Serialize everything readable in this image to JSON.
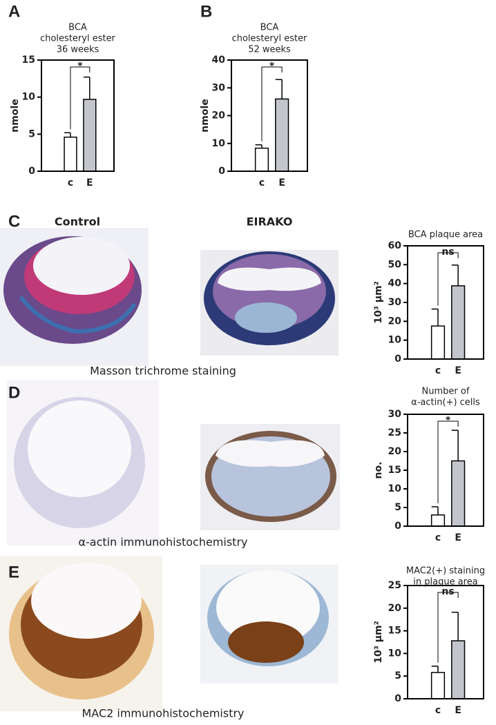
{
  "chart_data": [
    {
      "type": "bar",
      "panel": "A",
      "title": [
        "BCA",
        "cholesteryl ester",
        "36 weeks"
      ],
      "ylabel": "nmole",
      "categories": [
        "c",
        "E"
      ],
      "values": [
        4.6,
        9.7
      ],
      "errors": [
        0.6,
        3.0
      ],
      "colors": [
        "#ffffff",
        "#c3c5cc"
      ],
      "ylim": [
        0,
        15
      ],
      "yticks": [
        0,
        5,
        10,
        15
      ],
      "annotation": "*"
    },
    {
      "type": "bar",
      "panel": "B",
      "title": [
        "BCA",
        "cholesteryl ester",
        "52 weeks"
      ],
      "ylabel": "nmole",
      "categories": [
        "c",
        "E"
      ],
      "values": [
        8.3,
        26
      ],
      "errors": [
        1.2,
        7
      ],
      "colors": [
        "#ffffff",
        "#c3c5cc"
      ],
      "ylim": [
        0,
        40
      ],
      "yticks": [
        0,
        10,
        20,
        30,
        40
      ],
      "annotation": "*"
    },
    {
      "type": "bar",
      "panel": "C",
      "title": [
        "BCA plaque area"
      ],
      "ylabel": "10³ µm²",
      "categories": [
        "c",
        "E"
      ],
      "values": [
        17.5,
        38.8
      ],
      "errors": [
        9,
        11
      ],
      "colors": [
        "#ffffff",
        "#c3c5cc"
      ],
      "ylim": [
        0,
        60
      ],
      "yticks": [
        0,
        10,
        20,
        30,
        40,
        50,
        60
      ],
      "annotation": "ns"
    },
    {
      "type": "bar",
      "panel": "D",
      "title": [
        "Number of",
        "α-actin(+) cells"
      ],
      "ylabel": "no.",
      "categories": [
        "c",
        "E"
      ],
      "values": [
        3,
        17.5
      ],
      "errors": [
        2.2,
        8.2
      ],
      "colors": [
        "#ffffff",
        "#c3c5cc"
      ],
      "ylim": [
        0,
        30
      ],
      "yticks": [
        0,
        5,
        10,
        15,
        20,
        25,
        30
      ],
      "annotation": "*"
    },
    {
      "type": "bar",
      "panel": "E",
      "title": [
        "MAC2(+) staining",
        "in plaque area"
      ],
      "ylabel": "10³ µm²",
      "categories": [
        "c",
        "E"
      ],
      "values": [
        5.8,
        12.8
      ],
      "errors": [
        1.4,
        6.3
      ],
      "colors": [
        "#ffffff",
        "#c3c5cc"
      ],
      "ylim": [
        0,
        25
      ],
      "yticks": [
        0,
        5,
        10,
        15,
        20,
        25
      ],
      "annotation": "ns"
    }
  ],
  "figure": {
    "column_labels": [
      "Control",
      "EIRAKO"
    ],
    "captions": [
      "Masson trichrome staining",
      "α-actin immunohistochemistry",
      "MAC2 immunohistochemistry"
    ]
  }
}
